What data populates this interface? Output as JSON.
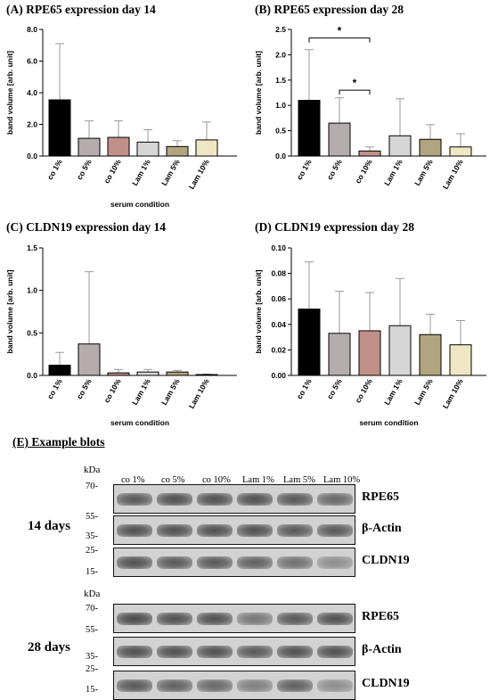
{
  "panels": [
    {
      "title": "(A) RPE65 expression day 14",
      "chart_data": {
        "type": "bar",
        "categories": [
          "co 1%",
          "co 5%",
          "co 10%",
          "Lam 1%",
          "Lam 5%",
          "Lam 10%"
        ],
        "values": [
          3.55,
          1.12,
          1.18,
          0.88,
          0.6,
          1.02
        ],
        "error_upper": [
          7.1,
          2.22,
          2.22,
          1.66,
          0.97,
          2.15
        ],
        "ylabel": "band volume [arb. unit]",
        "xlabel": "serum condition",
        "ylim": [
          0,
          8
        ],
        "yticks": [
          0,
          2,
          4,
          6,
          8
        ],
        "ytick_labels": [
          "0.0",
          "2.0",
          "4.0",
          "6.0",
          "8.0"
        ],
        "bar_colors": [
          "#000000",
          "#b5adad",
          "#c09088",
          "#d6d6d6",
          "#b2a47e",
          "#efe6c4"
        ],
        "significance": []
      }
    },
    {
      "title": "(B) RPE65 expression day 28",
      "chart_data": {
        "type": "bar",
        "categories": [
          "co 1%",
          "co 5%",
          "co 10%",
          "Lam 1%",
          "Lam 5%",
          "Lam 10%"
        ],
        "values": [
          1.1,
          0.65,
          0.1,
          0.4,
          0.33,
          0.18
        ],
        "error_upper": [
          2.1,
          1.15,
          0.18,
          1.13,
          0.62,
          0.44
        ],
        "ylabel": "band volume [arb. unit]",
        "xlabel": "",
        "ylim": [
          0,
          2.5
        ],
        "yticks": [
          0,
          0.5,
          1,
          1.5,
          2,
          2.5
        ],
        "ytick_labels": [
          "0.0",
          "0.5",
          "1.0",
          "1.5",
          "2.0",
          "2.5"
        ],
        "bar_colors": [
          "#000000",
          "#b5adad",
          "#c09088",
          "#d6d6d6",
          "#b2a47e",
          "#efe6c4"
        ],
        "significance": [
          {
            "from": 0,
            "to": 2,
            "y": 2.33,
            "label": "*"
          },
          {
            "from": 1,
            "to": 2,
            "y": 1.3,
            "label": "*"
          }
        ]
      }
    },
    {
      "title": "(C) CLDN19 expression day 14",
      "chart_data": {
        "type": "bar",
        "categories": [
          "co 1%",
          "co 5%",
          "co 10%",
          "Lam 1%",
          "Lam 5%",
          "Lam 10%"
        ],
        "values": [
          0.12,
          0.37,
          0.03,
          0.04,
          0.04,
          0.01
        ],
        "error_upper": [
          0.27,
          1.22,
          0.07,
          0.07,
          0.06,
          0.015
        ],
        "ylabel": "band volume [arb. unit]",
        "xlabel": "serum condition",
        "ylim": [
          0,
          1.5
        ],
        "yticks": [
          0,
          0.5,
          1,
          1.5
        ],
        "ytick_labels": [
          "0.0",
          "0.5",
          "1.0",
          "1.5"
        ],
        "bar_colors": [
          "#000000",
          "#b5adad",
          "#c09088",
          "#d6d6d6",
          "#b2a47e",
          "#efe6c4"
        ],
        "significance": []
      }
    },
    {
      "title": "(D) CLDN19 expression day 28",
      "chart_data": {
        "type": "bar",
        "categories": [
          "co 1%",
          "co 5%",
          "co 10%",
          "Lam 1%",
          "Lam 5%",
          "Lam 10%"
        ],
        "values": [
          0.052,
          0.033,
          0.035,
          0.039,
          0.032,
          0.024
        ],
        "error_upper": [
          0.089,
          0.066,
          0.065,
          0.076,
          0.048,
          0.043
        ],
        "ylabel": "band volume [arb. unit]",
        "xlabel": "serum condition",
        "ylim": [
          0,
          0.1
        ],
        "yticks": [
          0,
          0.02,
          0.04,
          0.06,
          0.08,
          0.1
        ],
        "ytick_labels": [
          "0.00",
          "0.02",
          "0.04",
          "0.06",
          "0.08",
          "0.10"
        ],
        "bar_colors": [
          "#000000",
          "#b5adad",
          "#c09088",
          "#d6d6d6",
          "#b2a47e",
          "#efe6c4"
        ],
        "significance": []
      }
    }
  ],
  "blots": {
    "title": "(E) Example blots",
    "kda_label": "kDa",
    "lanes": [
      "co 1%",
      "co 5%",
      "co 10%",
      "Lam 1%",
      "Lam 5%",
      "Lam 10%"
    ],
    "groups": [
      {
        "days_label": "14 days",
        "markers": [
          "70-",
          "55-",
          "35-",
          "25-",
          "15-"
        ],
        "rows": [
          {
            "protein": "RPE65",
            "intensity": [
              0.8,
              0.85,
              0.85,
              0.85,
              0.8,
              0.7
            ]
          },
          {
            "protein": "β-Actin",
            "intensity": [
              0.85,
              0.85,
              0.85,
              0.85,
              0.8,
              0.8
            ]
          },
          {
            "protein": "CLDN19",
            "intensity": [
              0.85,
              0.8,
              0.8,
              0.75,
              0.65,
              0.45
            ]
          }
        ]
      },
      {
        "days_label": "28 days",
        "markers": [
          "70-",
          "55-",
          "35-",
          "25-",
          "15-"
        ],
        "rows": [
          {
            "protein": "RPE65",
            "intensity": [
              0.9,
              0.85,
              0.85,
              0.6,
              0.8,
              0.85
            ]
          },
          {
            "protein": "β-Actin",
            "intensity": [
              0.85,
              0.85,
              0.85,
              0.8,
              0.85,
              0.85
            ]
          },
          {
            "protein": "CLDN19",
            "intensity": [
              0.8,
              0.75,
              0.7,
              0.55,
              0.75,
              0.45
            ]
          }
        ]
      }
    ]
  }
}
